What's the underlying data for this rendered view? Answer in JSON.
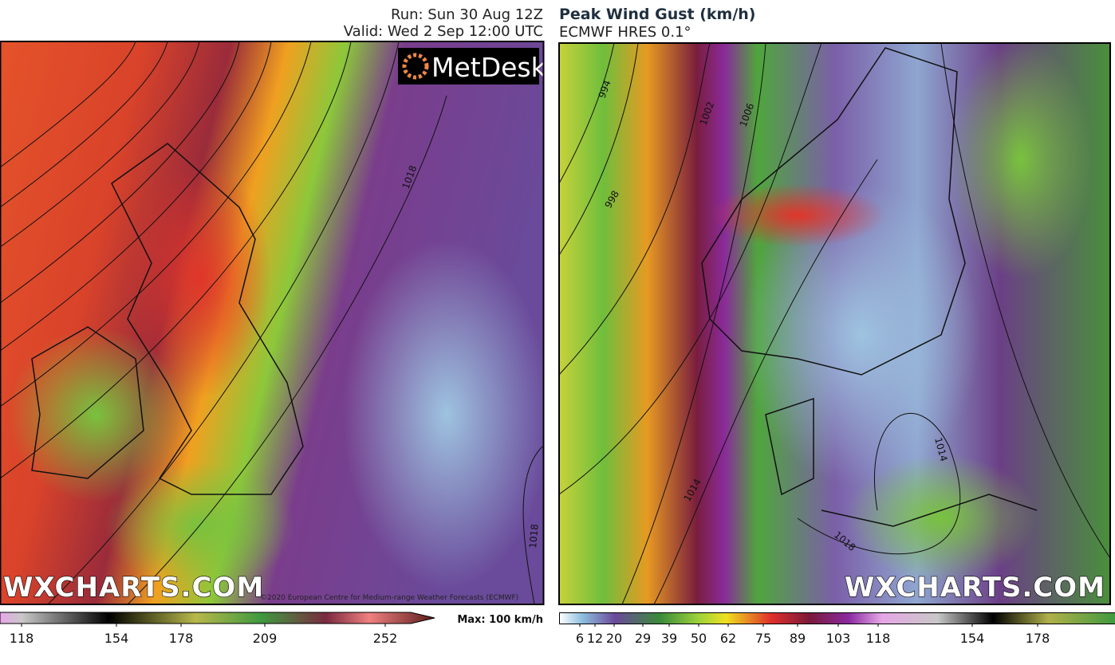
{
  "header": {
    "run": "Run: Sun 30 Aug 12Z",
    "valid": "Valid: Wed 2 Sep 12:00 UTC",
    "title": "Peak Wind Gust (km/h)",
    "model": "ECMWF HRES 0.1°"
  },
  "left_map": {
    "logo": "MetDesk",
    "watermark": "WXCHARTS.COM",
    "copyright": "©2020 European Centre for Medium-range Weather Forecasts (ECMWF)",
    "isobars": [
      "1018",
      "1018"
    ]
  },
  "right_map": {
    "watermark": "WXCHARTS.COM",
    "isobars": [
      "994",
      "998",
      "1002",
      "1006",
      "1014",
      "1014",
      "1018"
    ]
  },
  "left_colorbar": {
    "labels": [
      118,
      154,
      178,
      209,
      252
    ],
    "max": "Max: 100 km/h"
  },
  "right_colorbar": {
    "labels": [
      6,
      12,
      20,
      29,
      39,
      50,
      62,
      75,
      89,
      103,
      118,
      154,
      178
    ]
  }
}
